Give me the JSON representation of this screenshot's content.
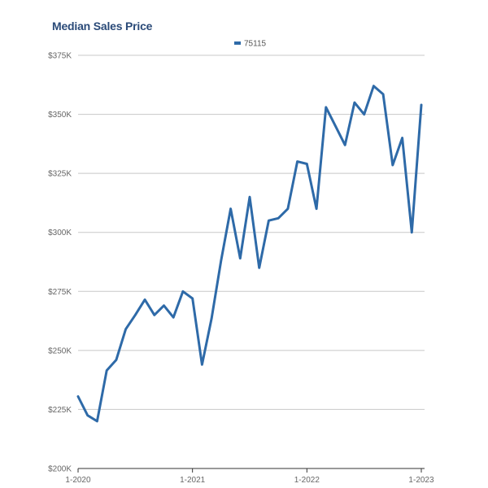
{
  "chart_data": {
    "type": "line",
    "title": "Median Sales Price",
    "xlabel": "",
    "ylabel": "",
    "legend_position": "top-center",
    "grid": true,
    "x_range": [
      "2020-01",
      "2023-01"
    ],
    "ylim": [
      200000,
      375000
    ],
    "y_ticks": [
      {
        "value": 375000,
        "label": "$375K"
      },
      {
        "value": 350000,
        "label": "$350K"
      },
      {
        "value": 325000,
        "label": "$325K"
      },
      {
        "value": 300000,
        "label": "$300K"
      },
      {
        "value": 275000,
        "label": "$275K"
      },
      {
        "value": 250000,
        "label": "$250K"
      },
      {
        "value": 225000,
        "label": "$225K"
      },
      {
        "value": 200000,
        "label": "$200K"
      }
    ],
    "x_ticks": [
      {
        "value": "2020-01",
        "label": "1-2020"
      },
      {
        "value": "2021-01",
        "label": "1-2021"
      },
      {
        "value": "2022-01",
        "label": "1-2022"
      },
      {
        "value": "2023-01",
        "label": "1-2023"
      }
    ],
    "series": [
      {
        "name": "75115",
        "color": "#2e6aa8",
        "x": [
          "2020-01",
          "2020-02",
          "2020-03",
          "2020-04",
          "2020-05",
          "2020-06",
          "2020-07",
          "2020-08",
          "2020-09",
          "2020-10",
          "2020-11",
          "2020-12",
          "2021-01",
          "2021-02",
          "2021-03",
          "2021-04",
          "2021-05",
          "2021-06",
          "2021-07",
          "2021-08",
          "2021-09",
          "2021-10",
          "2021-11",
          "2021-12",
          "2022-01",
          "2022-02",
          "2022-03",
          "2022-04",
          "2022-05",
          "2022-06",
          "2022-07",
          "2022-08",
          "2022-09",
          "2022-10",
          "2022-11",
          "2022-12",
          "2023-01"
        ],
        "values": [
          230500,
          222500,
          220000,
          241500,
          246000,
          259000,
          265000,
          271500,
          265000,
          269000,
          264000,
          275000,
          272000,
          244000,
          263500,
          288000,
          310000,
          289000,
          315000,
          285000,
          305000,
          306000,
          310000,
          330000,
          329000,
          310000,
          353000,
          345000,
          337000,
          355000,
          350000,
          362000,
          358500,
          328500,
          340000,
          300000,
          354000
        ]
      }
    ]
  }
}
